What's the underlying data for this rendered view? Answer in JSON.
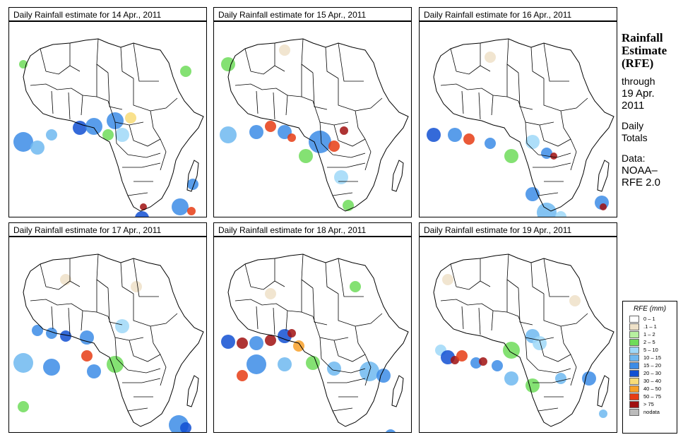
{
  "panels": [
    {
      "title": "Daily Rainfall estimate for  14 Apr., 2011"
    },
    {
      "title": "Daily Rainfall estimate for  15 Apr., 2011"
    },
    {
      "title": "Daily Rainfall estimate for  16 Apr., 2011"
    },
    {
      "title": "Daily Rainfall estimate for  17 Apr., 2011"
    },
    {
      "title": "Daily Rainfall estimate for  18 Apr., 2011"
    },
    {
      "title": "Daily Rainfall estimate for  19 Apr., 2011"
    }
  ],
  "side": {
    "title_line1": "Rainfall",
    "title_line2": "Estimate",
    "title_line3": "(RFE)",
    "through": "through",
    "date_line1": "19 Apr.",
    "date_line2": "2011",
    "daily": "Daily",
    "totals": "Totals",
    "data_label": "Data:",
    "source_line1": "NOAA–",
    "source_line2": "RFE 2.0"
  },
  "legend": {
    "title": "RFE (mm)",
    "items": [
      {
        "label": "0 – 1",
        "color": "#ffffff"
      },
      {
        "label": ".1 – 1",
        "color": "#eee1c8"
      },
      {
        "label": "1 – 2",
        "color": "#b7f0a0"
      },
      {
        "label": "2 – 5",
        "color": "#6fdc5a"
      },
      {
        "label": "5 – 10",
        "color": "#9fd8f8"
      },
      {
        "label": "10 – 15",
        "color": "#6fb8f0"
      },
      {
        "label": "15 – 20",
        "color": "#3c8ce6"
      },
      {
        "label": "20 – 30",
        "color": "#1250d2"
      },
      {
        "label": "30 – 40",
        "color": "#f8dc78"
      },
      {
        "label": "40 – 50",
        "color": "#f8a028"
      },
      {
        "label": "50 – 75",
        "color": "#e63c14"
      },
      {
        "label": "> 75",
        "color": "#a01010"
      },
      {
        "label": "nodata",
        "color": "#bbbbbb"
      }
    ]
  }
}
